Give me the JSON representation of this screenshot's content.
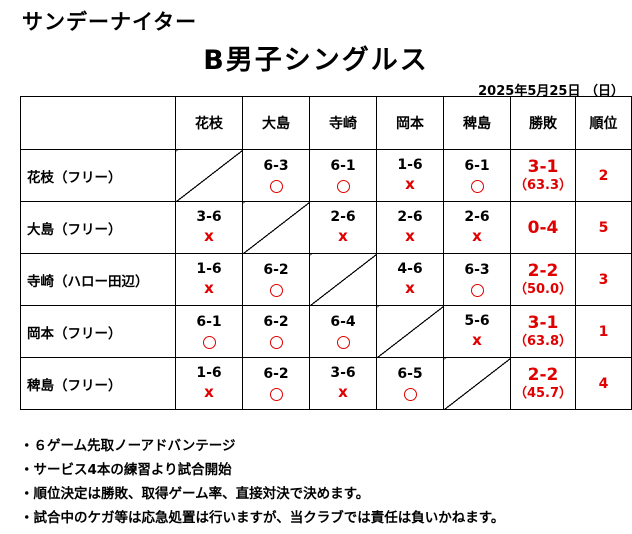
{
  "header": {
    "event_title": "サンデーナイター",
    "main_title": "B男子シングルス",
    "date": "2025年5月25日 （日）"
  },
  "table": {
    "columns": [
      "花枝",
      "大島",
      "寺崎",
      "岡本",
      "稗島",
      "勝敗",
      "順位"
    ],
    "rows": [
      {
        "name": "花枝（フリー）",
        "cells": [
          null,
          {
            "score": "6-3",
            "result": "win"
          },
          {
            "score": "6-1",
            "result": "win"
          },
          {
            "score": "1-6",
            "result": "lose"
          },
          {
            "score": "6-1",
            "result": "win"
          }
        ],
        "record": "3-1",
        "pct": "（63.3）",
        "rank": "2"
      },
      {
        "name": "大島（フリー）",
        "cells": [
          {
            "score": "3-6",
            "result": "lose"
          },
          null,
          {
            "score": "2-6",
            "result": "lose"
          },
          {
            "score": "2-6",
            "result": "lose"
          },
          {
            "score": "2-6",
            "result": "lose"
          }
        ],
        "record": "0-4",
        "pct": "",
        "rank": "5"
      },
      {
        "name": "寺崎（ハロー田辺）",
        "cells": [
          {
            "score": "1-6",
            "result": "lose"
          },
          {
            "score": "6-2",
            "result": "win"
          },
          null,
          {
            "score": "4-6",
            "result": "lose"
          },
          {
            "score": "6-3",
            "result": "win"
          }
        ],
        "record": "2-2",
        "pct": "（50.0）",
        "rank": "3"
      },
      {
        "name": "岡本（フリー）",
        "cells": [
          {
            "score": "6-1",
            "result": "win"
          },
          {
            "score": "6-2",
            "result": "win"
          },
          {
            "score": "6-4",
            "result": "win"
          },
          null,
          {
            "score": "5-6",
            "result": "lose"
          }
        ],
        "record": "3-1",
        "pct": "（63.8）",
        "rank": "1"
      },
      {
        "name": "稗島（フリー）",
        "cells": [
          {
            "score": "1-6",
            "result": "lose"
          },
          {
            "score": "6-2",
            "result": "win"
          },
          {
            "score": "3-6",
            "result": "lose"
          },
          {
            "score": "6-5",
            "result": "win"
          },
          null
        ],
        "record": "2-2",
        "pct": "（45.7）",
        "rank": "4"
      }
    ],
    "lose_mark": "x",
    "mark_color": "#e00000"
  },
  "notes": [
    "・６ゲーム先取ノーアドバンテージ",
    "・サービス4本の練習より試合開始",
    "・順位決定は勝敗、取得ゲーム率、直接対決で決めます。",
    "・試合中のケガ等は応急処置は行いますが、当クラブでは責任は負いかねます。"
  ]
}
